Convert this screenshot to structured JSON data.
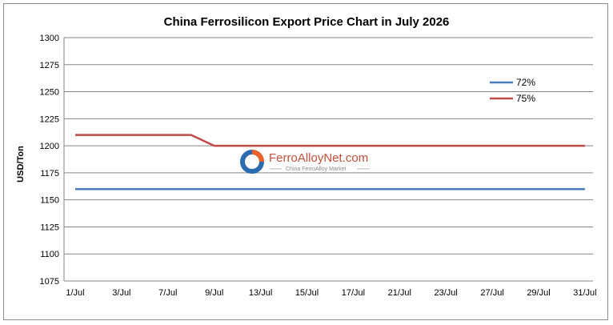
{
  "chart_data": {
    "type": "line",
    "title": "China Ferrosilicon Export Price Chart in July 2026",
    "ylabel": "USD/Ton",
    "xlabel": "",
    "categories": [
      "1/Jul",
      "3/Jul",
      "7/Jul",
      "9/Jul",
      "13/Jul",
      "15/Jul",
      "17/Jul",
      "21/Jul",
      "23/Jul",
      "27/Jul",
      "29/Jul",
      "31/Jul"
    ],
    "yticks": [
      1075,
      1100,
      1125,
      1150,
      1175,
      1200,
      1225,
      1250,
      1275,
      1300
    ],
    "ylim": [
      1075,
      1300
    ],
    "grid": true,
    "legend_position": "top-right",
    "series": [
      {
        "name": "72%",
        "color": "#4a7ebb",
        "points": [
          [
            0,
            1160
          ],
          [
            1,
            1160
          ],
          [
            2,
            1160
          ],
          [
            3,
            1160
          ],
          [
            4,
            1160
          ],
          [
            5,
            1160
          ],
          [
            6,
            1160
          ],
          [
            7,
            1160
          ],
          [
            8,
            1160
          ],
          [
            9,
            1160
          ],
          [
            10,
            1160
          ],
          [
            11,
            1160
          ]
        ]
      },
      {
        "name": "75%",
        "color": "#be4b48",
        "points": [
          [
            0,
            1210
          ],
          [
            1,
            1210
          ],
          [
            2,
            1210
          ],
          [
            2.5,
            1210
          ],
          [
            3,
            1200
          ],
          [
            4,
            1200
          ],
          [
            5,
            1200
          ],
          [
            6,
            1200
          ],
          [
            7,
            1200
          ],
          [
            8,
            1200
          ],
          [
            9,
            1200
          ],
          [
            10,
            1200
          ],
          [
            11,
            1200
          ]
        ]
      }
    ]
  },
  "watermark": {
    "name": "FerroAlloyNet.com",
    "tagline": "China FerroAlloy Market",
    "colors": [
      "#2b6cb0",
      "#e8622a"
    ]
  }
}
